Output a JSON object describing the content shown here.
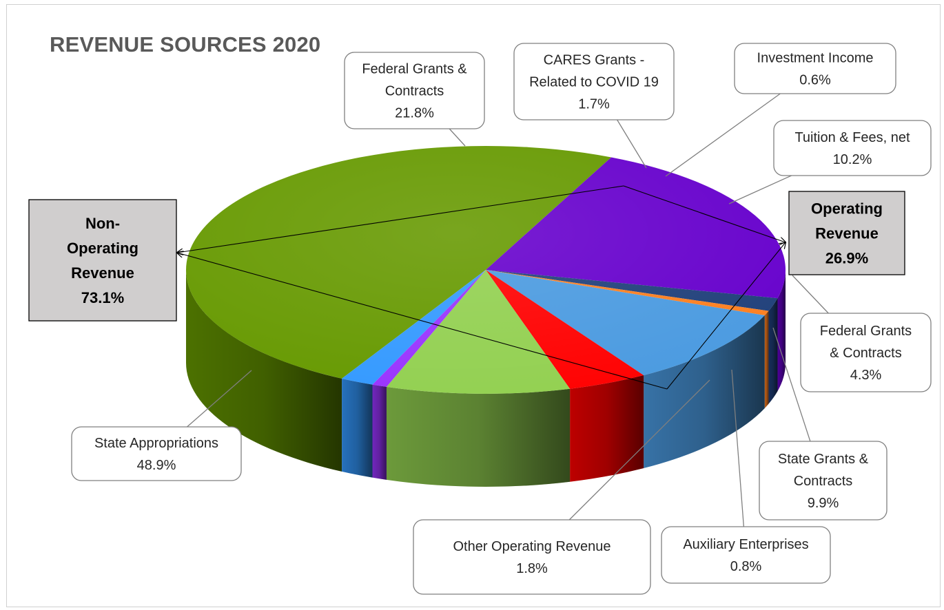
{
  "chart_data": {
    "type": "pie",
    "title": "REVENUE SOURCES 2020",
    "slices": [
      {
        "label": "State Appropriations",
        "value": 48.9,
        "color": "#669900"
      },
      {
        "label": "Federal Grants & Contracts",
        "value": 21.8,
        "color": "#6600cc"
      },
      {
        "label": "CARES Grants - Related to COVID 19",
        "value": 1.7,
        "color": "#1f3f7a"
      },
      {
        "label": "Investment Income",
        "value": 0.6,
        "color": "#ff7f1f"
      },
      {
        "label": "Tuition & Fees, net",
        "value": 10.2,
        "color": "#4a9ae0"
      },
      {
        "label": "Federal Grants & Contracts",
        "value": 4.3,
        "color": "#ff0000"
      },
      {
        "label": "State Grants & Contracts",
        "value": 9.9,
        "color": "#92d050"
      },
      {
        "label": "Auxiliary Enterprises",
        "value": 0.8,
        "color": "#9933ff"
      },
      {
        "label": "Other Operating Revenue",
        "value": 1.8,
        "color": "#3399ff"
      }
    ],
    "groups": [
      {
        "label_lines": [
          "Non-",
          "Operating",
          "Revenue",
          "73.1%"
        ],
        "value": 73.1
      },
      {
        "label_lines": [
          "Operating",
          "Revenue",
          "26.9%"
        ],
        "value": 26.9
      }
    ],
    "callouts": [
      {
        "lines": [
          "Federal Grants &",
          "Contracts",
          "21.8%"
        ]
      },
      {
        "lines": [
          "CARES Grants -",
          "Related to COVID 19",
          "1.7%"
        ]
      },
      {
        "lines": [
          "Investment Income",
          "0.6%"
        ]
      },
      {
        "lines": [
          "Tuition & Fees, net",
          "10.2%"
        ]
      },
      {
        "lines": [
          "Federal Grants",
          "& Contracts",
          "4.3%"
        ]
      },
      {
        "lines": [
          "State Grants &",
          "Contracts",
          "9.9%"
        ]
      },
      {
        "lines": [
          "Auxiliary Enterprises",
          "0.8%"
        ]
      },
      {
        "lines": [
          "Other Operating Revenue",
          "1.8%"
        ]
      },
      {
        "lines": [
          "State Appropriations",
          "48.9%"
        ]
      }
    ]
  }
}
